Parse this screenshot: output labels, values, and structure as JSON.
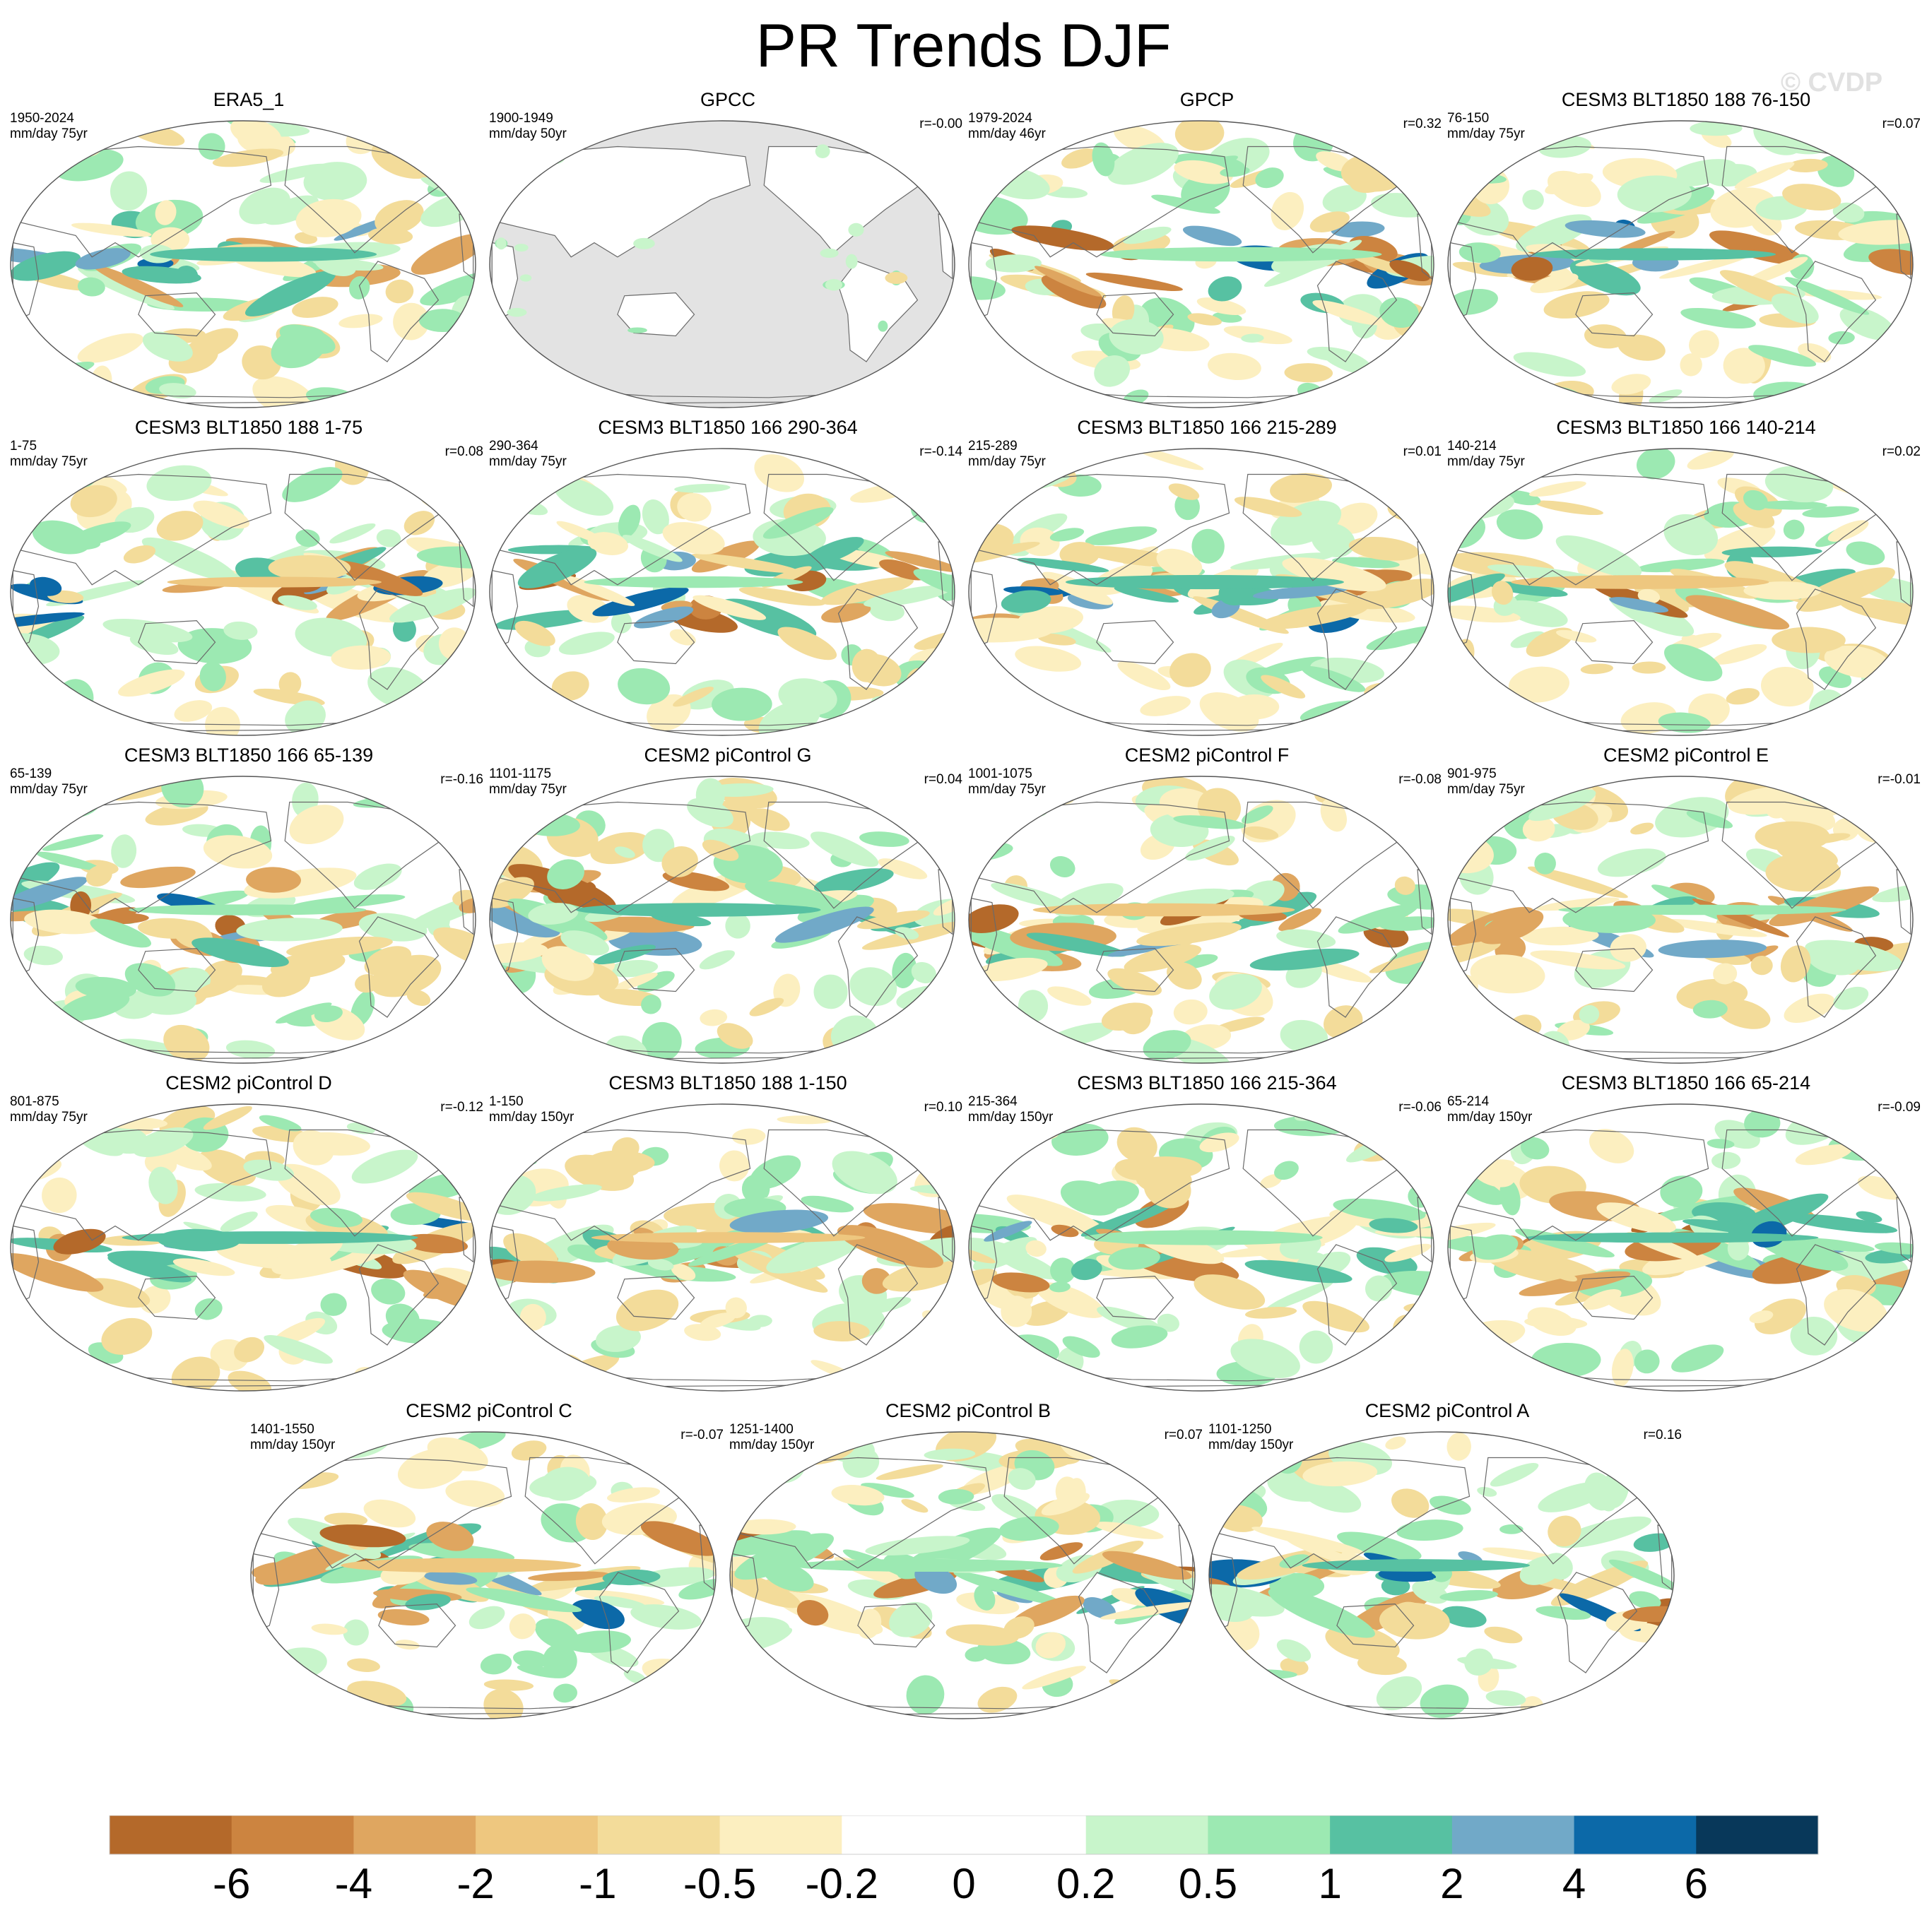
{
  "figure": {
    "title": "PR Trends DJF",
    "credit": "© CVDP"
  },
  "chart_data": {
    "type": "heatmap",
    "title": "PR Trends DJF",
    "projection": "robinson-like global map",
    "units": "mm/day",
    "colorbar": {
      "labels": [
        "-6",
        "-4",
        "-2",
        "-1",
        "-0.5",
        "-0.2",
        "0",
        "0.2",
        "0.5",
        "1",
        "2",
        "4",
        "6"
      ],
      "levels": [
        -6,
        -4,
        -2,
        -1,
        -0.5,
        -0.2,
        0,
        0.2,
        0.5,
        1,
        2,
        4,
        6
      ],
      "colors": [
        "#b4692a",
        "#cc8440",
        "#dfa660",
        "#eec77f",
        "#f3dc9a",
        "#fcefc0",
        "#ffffff",
        "#ffffff",
        "#c8f5cb",
        "#9ce9b2",
        "#57c1a2",
        "#71a9c8",
        "#0c69a8",
        "#08385a"
      ]
    },
    "panels": [
      {
        "name": "ERA5_1",
        "years": "1950-2024",
        "units": "mm/day 75yr",
        "r": "",
        "land_masked": false
      },
      {
        "name": "GPCC",
        "years": "1900-1949",
        "units": "mm/day 50yr",
        "r": "r=-0.00",
        "land_masked": true
      },
      {
        "name": "GPCP",
        "years": "1979-2024",
        "units": "mm/day 46yr",
        "r": "r=0.32",
        "land_masked": false
      },
      {
        "name": "CESM3 BLT1850 188 76-150",
        "years": "76-150",
        "units": "mm/day 75yr",
        "r": "r=0.07",
        "land_masked": false
      },
      {
        "name": "CESM3 BLT1850 188 1-75",
        "years": "1-75",
        "units": "mm/day 75yr",
        "r": "r=0.08",
        "land_masked": false
      },
      {
        "name": "CESM3 BLT1850 166 290-364",
        "years": "290-364",
        "units": "mm/day 75yr",
        "r": "r=-0.14",
        "land_masked": false
      },
      {
        "name": "CESM3 BLT1850 166 215-289",
        "years": "215-289",
        "units": "mm/day 75yr",
        "r": "r=0.01",
        "land_masked": false
      },
      {
        "name": "CESM3 BLT1850 166 140-214",
        "years": "140-214",
        "units": "mm/day 75yr",
        "r": "r=0.02",
        "land_masked": false
      },
      {
        "name": "CESM3 BLT1850 166 65-139",
        "years": "65-139",
        "units": "mm/day 75yr",
        "r": "r=-0.16",
        "land_masked": false
      },
      {
        "name": "CESM2 piControl G",
        "years": "1101-1175",
        "units": "mm/day 75yr",
        "r": "r=0.04",
        "land_masked": false
      },
      {
        "name": "CESM2 piControl F",
        "years": "1001-1075",
        "units": "mm/day 75yr",
        "r": "r=-0.08",
        "land_masked": false
      },
      {
        "name": "CESM2 piControl E",
        "years": "901-975",
        "units": "mm/day 75yr",
        "r": "r=-0.01",
        "land_masked": false
      },
      {
        "name": "CESM2 piControl D",
        "years": "801-875",
        "units": "mm/day 75yr",
        "r": "r=-0.12",
        "land_masked": false
      },
      {
        "name": "CESM3 BLT1850 188 1-150",
        "years": "1-150",
        "units": "mm/day 150yr",
        "r": "r=0.10",
        "land_masked": false
      },
      {
        "name": "CESM3 BLT1850 166 215-364",
        "years": "215-364",
        "units": "mm/day 150yr",
        "r": "r=-0.06",
        "land_masked": false
      },
      {
        "name": "CESM3 BLT1850 166 65-214",
        "years": "65-214",
        "units": "mm/day 150yr",
        "r": "r=-0.09",
        "land_masked": false
      },
      {
        "name": "CESM2 piControl C",
        "years": "1401-1550",
        "units": "mm/day 150yr",
        "r": "r=-0.07",
        "land_masked": false
      },
      {
        "name": "CESM2 piControl B",
        "years": "1251-1400",
        "units": "mm/day 150yr",
        "r": "r=0.07",
        "land_masked": false
      },
      {
        "name": "CESM2 piControl A",
        "years": "1101-1250",
        "units": "mm/day 150yr",
        "r": "r=0.16",
        "land_masked": false
      }
    ]
  }
}
